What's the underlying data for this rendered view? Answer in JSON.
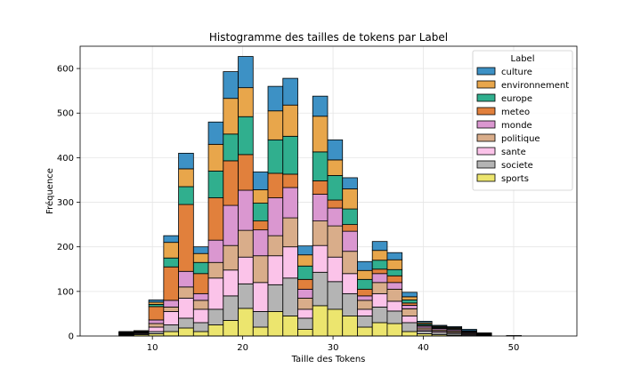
{
  "chart_data": {
    "type": "bar",
    "stacked": true,
    "title": "Histogramme des tailles de tokens par Label",
    "xlabel": "Taille des Tokens",
    "ylabel": "Fréquence",
    "xlim": [
      2,
      57
    ],
    "ylim": [
      0,
      650
    ],
    "xticks": [
      10,
      20,
      30,
      40,
      50
    ],
    "yticks": [
      0,
      100,
      200,
      300,
      400,
      500,
      600
    ],
    "grid": true,
    "legend": {
      "title": "Label",
      "placement": "top-right"
    },
    "bin_width": 1.65,
    "bin_starts": [
      3.0,
      4.65,
      6.3,
      7.95,
      9.6,
      11.25,
      12.9,
      14.55,
      16.2,
      17.85,
      19.5,
      21.15,
      22.8,
      24.45,
      26.1,
      27.75,
      29.4,
      31.05,
      32.7,
      34.35,
      36.0,
      37.65,
      39.3,
      40.95,
      42.6,
      44.25,
      45.9,
      47.55,
      49.2,
      50.85,
      52.5,
      54.15
    ],
    "series": [
      {
        "name": "sports",
        "color": "#ece56e",
        "values": [
          0,
          0,
          2,
          3,
          5,
          10,
          18,
          10,
          25,
          35,
          62,
          20,
          55,
          45,
          15,
          68,
          60,
          45,
          20,
          30,
          28,
          10,
          5,
          3,
          2,
          1,
          0,
          0,
          1,
          0,
          0,
          0
        ]
      },
      {
        "name": "societe",
        "color": "#b4b4b4",
        "values": [
          0,
          0,
          1,
          2,
          5,
          15,
          22,
          20,
          35,
          55,
          55,
          35,
          60,
          85,
          25,
          75,
          62,
          50,
          25,
          35,
          28,
          20,
          6,
          5,
          4,
          2,
          1,
          0,
          0,
          0,
          0,
          0
        ]
      },
      {
        "name": "sante",
        "color": "#fbc3e9",
        "values": [
          0,
          0,
          1,
          2,
          10,
          30,
          45,
          30,
          70,
          58,
          60,
          65,
          65,
          70,
          20,
          60,
          55,
          45,
          15,
          30,
          22,
          15,
          3,
          3,
          2,
          2,
          1,
          0,
          0,
          0,
          0,
          0
        ]
      },
      {
        "name": "politique",
        "color": "#d9ad8a",
        "values": [
          0,
          0,
          1,
          1,
          8,
          10,
          25,
          20,
          35,
          55,
          60,
          60,
          45,
          65,
          25,
          55,
          70,
          50,
          20,
          25,
          27,
          16,
          4,
          3,
          3,
          2,
          1,
          0,
          0,
          0,
          0,
          0
        ]
      },
      {
        "name": "monde",
        "color": "#da97d0",
        "values": [
          0,
          0,
          1,
          1,
          8,
          15,
          35,
          15,
          50,
          90,
          90,
          58,
          85,
          68,
          20,
          60,
          40,
          45,
          10,
          20,
          15,
          8,
          4,
          3,
          3,
          2,
          1,
          0,
          0,
          0,
          0,
          0
        ]
      },
      {
        "name": "meteo",
        "color": "#e1803c",
        "values": [
          0,
          0,
          1,
          1,
          30,
          75,
          150,
          45,
          95,
          100,
          80,
          20,
          55,
          30,
          22,
          30,
          18,
          15,
          15,
          10,
          15,
          5,
          2,
          1,
          1,
          1,
          1,
          0,
          0,
          0,
          0,
          0
        ]
      },
      {
        "name": "europe",
        "color": "#30af8e",
        "values": [
          0,
          0,
          1,
          1,
          5,
          20,
          40,
          25,
          60,
          60,
          85,
          40,
          75,
          85,
          30,
          65,
          55,
          35,
          22,
          20,
          14,
          7,
          3,
          2,
          2,
          1,
          0,
          0,
          0,
          0,
          0,
          0
        ]
      },
      {
        "name": "environnement",
        "color": "#e8a64b",
        "values": [
          0,
          0,
          1,
          1,
          5,
          35,
          40,
          20,
          60,
          80,
          65,
          30,
          65,
          70,
          25,
          80,
          35,
          45,
          20,
          22,
          22,
          7,
          3,
          2,
          2,
          1,
          1,
          0,
          0,
          0,
          0,
          0
        ]
      },
      {
        "name": "culture",
        "color": "#3d91c5",
        "values": [
          0,
          0,
          1,
          0,
          5,
          15,
          35,
          15,
          50,
          60,
          70,
          40,
          55,
          60,
          20,
          45,
          45,
          25,
          20,
          20,
          16,
          10,
          3,
          2,
          2,
          3,
          1,
          0,
          0,
          0,
          0,
          0
        ]
      }
    ]
  }
}
